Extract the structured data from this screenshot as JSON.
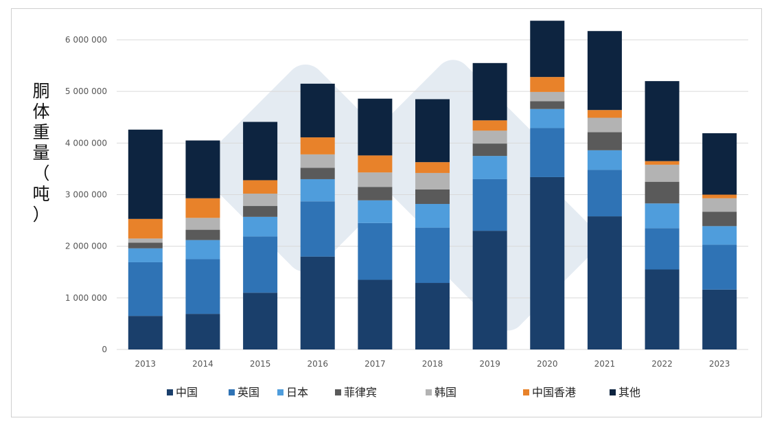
{
  "chart_data": {
    "type": "bar",
    "stacked": true,
    "ylabel": "胴体重量（吨）",
    "ylabel_chars": [
      "胴",
      "体",
      "重",
      "量",
      "（",
      "吨",
      "）"
    ],
    "xlabel": "",
    "ylim": [
      0,
      6000000
    ],
    "ytick_values": [
      0,
      1000000,
      2000000,
      3000000,
      4000000,
      5000000,
      6000000
    ],
    "ytick_labels": [
      "0",
      "1 000 000",
      "2 000 000",
      "3 000 000",
      "4 000 000",
      "5 000 000",
      "6 000 000"
    ],
    "grid": true,
    "legend_position": "bottom",
    "categories": [
      "2013",
      "2014",
      "2015",
      "2016",
      "2017",
      "2018",
      "2019",
      "2020",
      "2021",
      "2022",
      "2023"
    ],
    "series": [
      {
        "name": "中国",
        "color": "#1a3f6b",
        "values": [
          650000,
          690000,
          1100000,
          1800000,
          1350000,
          1290000,
          2300000,
          3340000,
          2580000,
          1550000,
          1160000
        ]
      },
      {
        "name": "英国",
        "color": "#2f73b5",
        "values": [
          1040000,
          1060000,
          1090000,
          1070000,
          1100000,
          1070000,
          1000000,
          950000,
          900000,
          800000,
          870000
        ]
      },
      {
        "name": "日本",
        "color": "#4f9ddc",
        "values": [
          270000,
          370000,
          380000,
          430000,
          440000,
          460000,
          450000,
          370000,
          380000,
          480000,
          360000
        ]
      },
      {
        "name": "菲律宾",
        "color": "#5a5a5a",
        "values": [
          110000,
          200000,
          210000,
          220000,
          260000,
          280000,
          240000,
          150000,
          350000,
          420000,
          280000
        ]
      },
      {
        "name": "韩国",
        "color": "#b3b3b3",
        "values": [
          80000,
          230000,
          240000,
          260000,
          280000,
          320000,
          250000,
          180000,
          280000,
          330000,
          260000
        ]
      },
      {
        "name": "中国香港",
        "color": "#e8822a",
        "values": [
          380000,
          380000,
          260000,
          330000,
          330000,
          210000,
          200000,
          290000,
          150000,
          70000,
          70000
        ]
      },
      {
        "name": "其他",
        "color": "#0d2440",
        "values": [
          1730000,
          1120000,
          1130000,
          1040000,
          1100000,
          1220000,
          1110000,
          1090000,
          1530000,
          1550000,
          1190000
        ]
      }
    ]
  },
  "colors": {
    "grid": "#d9d9d9",
    "axis_text": "#555555",
    "frame_border": "#cfcfcf"
  }
}
